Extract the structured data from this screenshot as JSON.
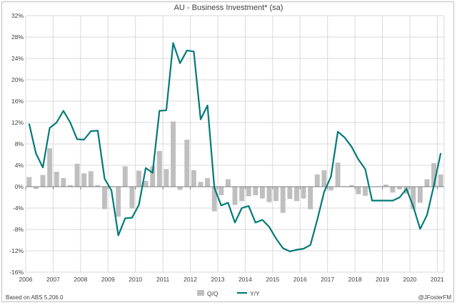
{
  "chart_data": {
    "type": "bar+line",
    "title": "AU - Business Investment* (sa)",
    "ylim": [
      -16,
      32
    ],
    "yticks": [
      -16,
      -12,
      -8,
      -4,
      0,
      4,
      8,
      12,
      16,
      20,
      24,
      28,
      32
    ],
    "ytick_labels": [
      "-16%",
      "-12%",
      "-8%",
      "-4%",
      "0%",
      "4%",
      "8%",
      "12%",
      "16%",
      "20%",
      "24%",
      "28%",
      "32%"
    ],
    "xlim": [
      2006,
      2021.25
    ],
    "xticks": [
      2006,
      2007,
      2008,
      2009,
      2010,
      2011,
      2012,
      2013,
      2014,
      2015,
      2016,
      2017,
      2018,
      2019,
      2020,
      2021
    ],
    "xtick_labels": [
      "2006",
      "2007",
      "2008",
      "2009",
      "2010",
      "2011",
      "2012",
      "2013",
      "2014",
      "2015",
      "2016",
      "2017",
      "2018",
      "2019",
      "2020",
      "2021"
    ],
    "x_start": 2006.0,
    "x_step": 0.25,
    "series": [
      {
        "name": "Q/Q",
        "kind": "bar",
        "color": "#bfbfbf",
        "values": [
          1.8,
          -0.4,
          2.2,
          7.2,
          2.8,
          1.6,
          0.3,
          4.3,
          2.5,
          2.9,
          0.3,
          -4.2,
          0.1,
          -5.6,
          3.8,
          -4.1,
          3.0,
          1.1,
          3.8,
          6.7,
          3.3,
          12.2,
          -0.6,
          8.8,
          3.1,
          0.9,
          1.6,
          -4.6,
          -1.6,
          1.4,
          -3.4,
          -2.7,
          -1.8,
          -1.6,
          -2.2,
          -2.9,
          -2.7,
          -4.9,
          -2.3,
          -2.7,
          -2.2,
          -4.2,
          2.3,
          3.1,
          -0.7,
          4.5,
          0.1,
          0.3,
          -1.4,
          -1.7,
          0.0,
          0.1,
          0.4,
          -1.1,
          -0.5,
          -1.3,
          -4.2,
          -3.0,
          1.4,
          4.4,
          2.3
        ]
      },
      {
        "name": "Y/Y",
        "kind": "line",
        "color": "#007a78",
        "values": [
          11.8,
          6.2,
          3.6,
          11.0,
          12.0,
          14.2,
          12.0,
          8.9,
          8.8,
          10.4,
          10.5,
          1.5,
          -0.7,
          -9.1,
          -5.9,
          -5.8,
          -3.4,
          3.5,
          2.6,
          14.2,
          14.3,
          26.9,
          23.1,
          25.5,
          25.3,
          12.6,
          15.2,
          -0.2,
          -3.5,
          -3.0,
          -6.7,
          -4.0,
          -3.6,
          -6.7,
          -6.2,
          -7.5,
          -9.7,
          -11.5,
          -12.1,
          -11.8,
          -11.6,
          -10.9,
          -6.2,
          -1.0,
          1.9,
          10.3,
          9.2,
          7.5,
          5.1,
          3.3,
          -2.6,
          -2.6,
          -2.6,
          -2.6,
          -2.0,
          -0.4,
          -3.7,
          -7.9,
          -5.3,
          0.2,
          6.3
        ]
      }
    ],
    "legend": [
      "Q/Q",
      "Y/Y"
    ],
    "legend_position": "bottom-center"
  },
  "footer": {
    "source": "Based on ABS 5,206.0",
    "credit": "@JFosterFM"
  }
}
